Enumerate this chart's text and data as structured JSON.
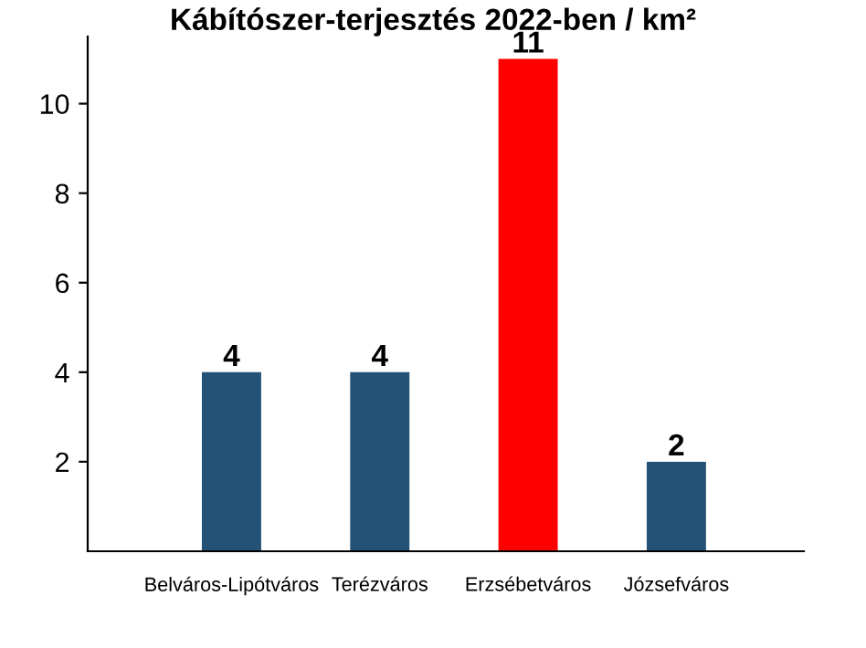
{
  "chart_data": {
    "type": "bar",
    "title": "Kábítószer-terjesztés 2022-ben / km²",
    "categories": [
      "Belváros-Lipótváros",
      "Terézváros",
      "Erzsébetváros",
      "Józsefváros"
    ],
    "values": [
      4,
      4,
      11,
      2
    ],
    "colors": [
      "#245276",
      "#245276",
      "#ff0000",
      "#245276"
    ],
    "ylim": [
      0,
      11.5
    ],
    "yticks": [
      2,
      4,
      6,
      8,
      10
    ],
    "grid": false,
    "data_labels": true,
    "legend": false
  }
}
